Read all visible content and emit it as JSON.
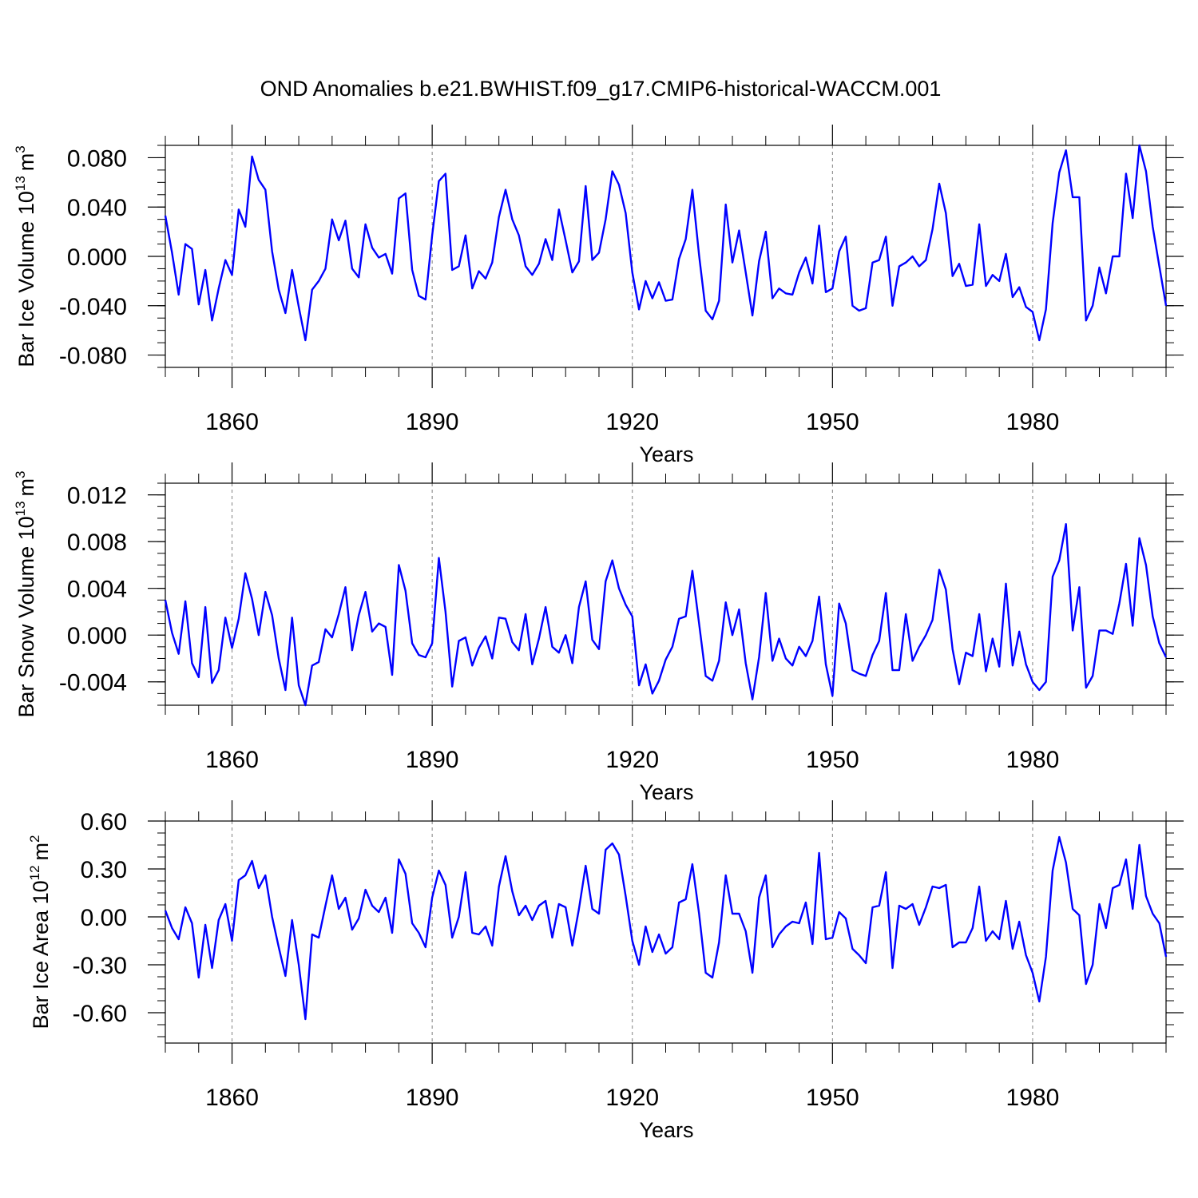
{
  "title": "OND Anomalies b.e21.BWHIST.f09_g17.CMIP6-historical-WACCM.001",
  "colors": {
    "line": "#0000ff",
    "frame": "#000000",
    "gridline": "#808080",
    "background": "#ffffff"
  },
  "chart_data": [
    {
      "type": "line",
      "name": "bar-ice-volume",
      "ylabel": "Bar Ice Volume 10",
      "ylabel_sup": "13",
      "ylabel_unit": "m",
      "ylabel_unit_sup": "3",
      "xlabel": "Years",
      "xlim": [
        1850,
        2000
      ],
      "ylim": [
        -0.09,
        0.09
      ],
      "x_ticks": [
        1860,
        1890,
        1920,
        1950,
        1980
      ],
      "x_tick_labels": [
        "1860",
        "1890",
        "1920",
        "1950",
        "1980"
      ],
      "y_ticks": [
        -0.08,
        -0.04,
        0.0,
        0.04,
        0.08
      ],
      "y_tick_labels": [
        "-0.080",
        "-0.040",
        "0.000",
        "0.040",
        "0.080"
      ],
      "x_start": 1850,
      "values": [
        0.033,
        0.003,
        -0.031,
        0.01,
        0.006,
        -0.039,
        -0.011,
        -0.052,
        -0.026,
        -0.003,
        -0.015,
        0.038,
        0.024,
        0.081,
        0.062,
        0.054,
        0.004,
        -0.027,
        -0.046,
        -0.011,
        -0.041,
        -0.068,
        -0.027,
        -0.02,
        -0.01,
        0.03,
        0.013,
        0.029,
        -0.01,
        -0.017,
        0.026,
        0.007,
        -0.001,
        0.002,
        -0.014,
        0.047,
        0.051,
        -0.011,
        -0.032,
        -0.035,
        0.017,
        0.061,
        0.067,
        -0.011,
        -0.008,
        0.017,
        -0.026,
        -0.012,
        -0.018,
        -0.005,
        0.032,
        0.054,
        0.03,
        0.017,
        -0.008,
        -0.015,
        -0.006,
        0.014,
        -0.003,
        0.038,
        0.013,
        -0.013,
        -0.004,
        0.057,
        -0.003,
        0.003,
        0.03,
        0.069,
        0.058,
        0.035,
        -0.013,
        -0.043,
        -0.02,
        -0.034,
        -0.021,
        -0.036,
        -0.035,
        -0.002,
        0.014,
        0.054,
        0.001,
        -0.044,
        -0.051,
        -0.036,
        0.042,
        -0.005,
        0.021,
        -0.013,
        -0.048,
        -0.004,
        0.02,
        -0.034,
        -0.026,
        -0.03,
        -0.031,
        -0.013,
        -0.001,
        -0.022,
        0.025,
        -0.029,
        -0.026,
        0.004,
        0.016,
        -0.04,
        -0.044,
        -0.042,
        -0.005,
        -0.003,
        0.016,
        -0.04,
        -0.008,
        -0.005,
        0.0,
        -0.008,
        -0.003,
        0.022,
        0.059,
        0.035,
        -0.016,
        -0.006,
        -0.024,
        -0.023,
        0.026,
        -0.024,
        -0.015,
        -0.02,
        0.002,
        -0.033,
        -0.025,
        -0.041,
        -0.045,
        -0.068,
        -0.043,
        0.027,
        0.068,
        0.086,
        0.048,
        0.048,
        -0.052,
        -0.04,
        -0.009,
        -0.03,
        0.0,
        0.0,
        0.067,
        0.031,
        0.09,
        0.069,
        0.024,
        -0.008,
        -0.04
      ]
    },
    {
      "type": "line",
      "name": "bar-snow-volume",
      "ylabel": "Bar Snow Volume 10",
      "ylabel_sup": "13",
      "ylabel_unit": "m",
      "ylabel_unit_sup": "3",
      "xlabel": "Years",
      "xlim": [
        1850,
        2000
      ],
      "ylim": [
        -0.006,
        0.013
      ],
      "x_ticks": [
        1860,
        1890,
        1920,
        1950,
        1980
      ],
      "x_tick_labels": [
        "1860",
        "1890",
        "1920",
        "1950",
        "1980"
      ],
      "y_ticks": [
        -0.004,
        0.0,
        0.004,
        0.008,
        0.012
      ],
      "y_tick_labels": [
        "-0.004",
        "0.000",
        "0.004",
        "0.008",
        "0.012"
      ],
      "x_start": 1850,
      "values": [
        0.003,
        0.0002,
        -0.0016,
        0.0029,
        -0.0024,
        -0.0036,
        0.0024,
        -0.0041,
        -0.003,
        0.0015,
        -0.0011,
        0.0014,
        0.0053,
        0.0031,
        0.0,
        0.0037,
        0.0017,
        -0.002,
        -0.0047,
        0.0015,
        -0.0043,
        -0.006,
        -0.0026,
        -0.0023,
        0.0005,
        -0.0002,
        0.0018,
        0.0041,
        -0.0013,
        0.0017,
        0.0037,
        0.0003,
        0.001,
        0.0007,
        -0.0034,
        0.006,
        0.0038,
        -0.0007,
        -0.0017,
        -0.0019,
        -0.0007,
        0.0066,
        0.002,
        -0.0044,
        -0.0005,
        -0.0002,
        -0.0026,
        -0.0011,
        -0.0001,
        -0.002,
        0.0015,
        0.0014,
        -0.0006,
        -0.0013,
        0.0018,
        -0.0025,
        -0.0003,
        0.0024,
        -0.001,
        -0.0015,
        0.0,
        -0.0024,
        0.0024,
        0.0046,
        -0.0004,
        -0.0012,
        0.0046,
        0.0064,
        0.004,
        0.0026,
        0.0016,
        -0.0043,
        -0.0025,
        -0.005,
        -0.0039,
        -0.0021,
        -0.001,
        0.0014,
        0.0016,
        0.0055,
        0.001,
        -0.0035,
        -0.0039,
        -0.0022,
        0.0028,
        0.0,
        0.0022,
        -0.0024,
        -0.0055,
        -0.0019,
        0.0036,
        -0.0022,
        -0.0003,
        -0.002,
        -0.0026,
        -0.001,
        -0.0018,
        -0.0005,
        0.0033,
        -0.0025,
        -0.0052,
        0.0027,
        0.001,
        -0.003,
        -0.0033,
        -0.0035,
        -0.0017,
        -0.0005,
        0.0036,
        -0.003,
        -0.003,
        0.0018,
        -0.0022,
        -0.001,
        0.0,
        0.0013,
        0.0056,
        0.0039,
        -0.0012,
        -0.0042,
        -0.0015,
        -0.0018,
        0.0018,
        -0.0031,
        -0.0003,
        -0.0027,
        0.0044,
        -0.0026,
        0.0003,
        -0.0025,
        -0.004,
        -0.0047,
        -0.004,
        0.005,
        0.0064,
        0.0095,
        0.0004,
        0.0041,
        -0.0045,
        -0.0035,
        0.0004,
        0.0004,
        0.0001,
        0.0027,
        0.0061,
        0.0008,
        0.0083,
        0.006,
        0.0016,
        -0.0007,
        -0.0019
      ]
    },
    {
      "type": "line",
      "name": "bar-ice-area",
      "ylabel": "Bar Ice Area 10",
      "ylabel_sup": "12",
      "ylabel_unit": "m",
      "ylabel_unit_sup": "2",
      "xlabel": "Years",
      "xlim": [
        1850,
        2000
      ],
      "ylim": [
        -0.79,
        0.6
      ],
      "x_ticks": [
        1860,
        1890,
        1920,
        1950,
        1980
      ],
      "x_tick_labels": [
        "1860",
        "1890",
        "1920",
        "1950",
        "1980"
      ],
      "y_ticks": [
        -0.6,
        -0.3,
        0.0,
        0.3,
        0.6
      ],
      "y_tick_labels": [
        "-0.60",
        "-0.30",
        "0.00",
        "0.30",
        "0.60"
      ],
      "x_start": 1850,
      "values": [
        0.04,
        -0.07,
        -0.14,
        0.06,
        -0.04,
        -0.38,
        -0.05,
        -0.32,
        -0.02,
        0.08,
        -0.15,
        0.23,
        0.26,
        0.35,
        0.18,
        0.26,
        0.0,
        -0.19,
        -0.37,
        -0.02,
        -0.3,
        -0.64,
        -0.11,
        -0.13,
        0.07,
        0.26,
        0.05,
        0.12,
        -0.08,
        -0.01,
        0.17,
        0.07,
        0.03,
        0.12,
        -0.1,
        0.36,
        0.27,
        -0.04,
        -0.1,
        -0.19,
        0.12,
        0.29,
        0.2,
        -0.13,
        0.0,
        0.28,
        -0.1,
        -0.11,
        -0.06,
        -0.18,
        0.19,
        0.38,
        0.16,
        0.01,
        0.07,
        -0.02,
        0.07,
        0.1,
        -0.13,
        0.08,
        0.06,
        -0.18,
        0.05,
        0.32,
        0.05,
        0.02,
        0.42,
        0.46,
        0.39,
        0.13,
        -0.15,
        -0.3,
        -0.06,
        -0.22,
        -0.11,
        -0.23,
        -0.19,
        0.09,
        0.11,
        0.33,
        0.02,
        -0.35,
        -0.38,
        -0.16,
        0.26,
        0.02,
        0.02,
        -0.09,
        -0.35,
        0.12,
        0.26,
        -0.19,
        -0.11,
        -0.06,
        -0.03,
        -0.04,
        0.09,
        -0.17,
        0.4,
        -0.14,
        -0.13,
        0.03,
        -0.01,
        -0.2,
        -0.24,
        -0.29,
        0.06,
        0.07,
        0.28,
        -0.32,
        0.07,
        0.05,
        0.08,
        -0.05,
        0.06,
        0.19,
        0.18,
        0.2,
        -0.19,
        -0.16,
        -0.16,
        -0.07,
        0.19,
        -0.15,
        -0.09,
        -0.14,
        0.1,
        -0.2,
        -0.03,
        -0.24,
        -0.35,
        -0.53,
        -0.25,
        0.29,
        0.5,
        0.34,
        0.05,
        0.01,
        -0.42,
        -0.3,
        0.08,
        -0.07,
        0.18,
        0.2,
        0.36,
        0.05,
        0.45,
        0.13,
        0.02,
        -0.04,
        -0.25
      ]
    }
  ]
}
